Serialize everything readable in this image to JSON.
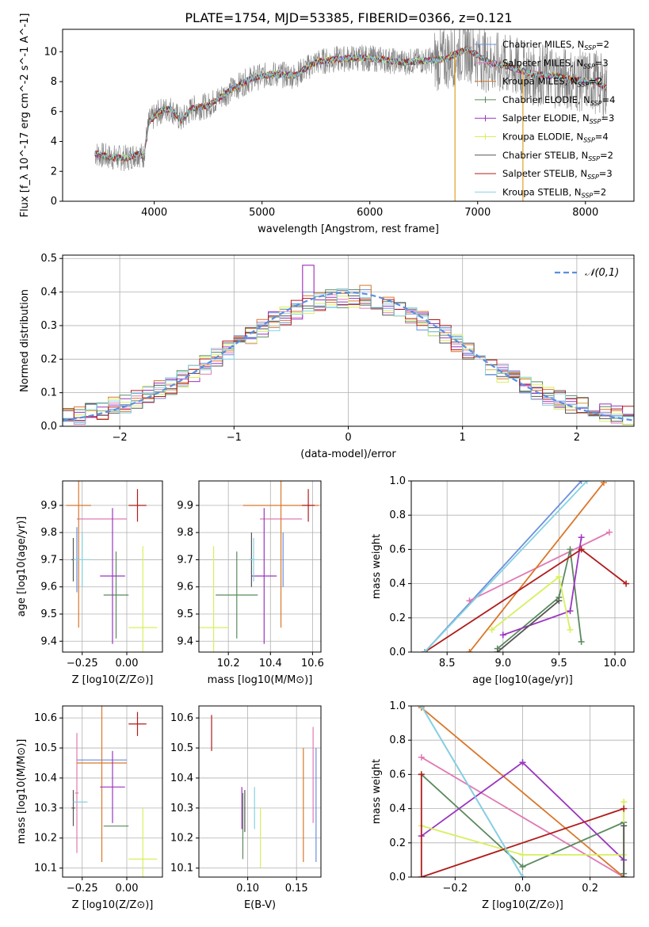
{
  "figure_title": "PLATE=1754, MJD=53385, FIBERID=0366, z=0.121",
  "series_legend": [
    {
      "label": "Chabrier MILES, N_SSP=2",
      "color": "#6d8fe0"
    },
    {
      "label": "Salpeter MILES, N_SSP=3",
      "color": "#e07ab5"
    },
    {
      "label": "Kroupa MILES, N_SSP=2",
      "color": "#d9772b"
    },
    {
      "label": "Chabrier ELODIE, N_SSP=4",
      "color": "#5b8a5e"
    },
    {
      "label": "Salpeter ELODIE, N_SSP=3",
      "color": "#9b35c0"
    },
    {
      "label": "Kroupa ELODIE, N_SSP=4",
      "color": "#d7ef5e"
    },
    {
      "label": "Chabrier STELIB, N_SSP=2",
      "color": "#555555"
    },
    {
      "label": "Salpeter STELIB, N_SSP=3",
      "color": "#b01c1c"
    },
    {
      "label": "Kroupa STELIB, N_SSP=2",
      "color": "#85d3e0"
    }
  ],
  "chart_data": [
    {
      "id": "spectrum",
      "type": "line",
      "title": "PLATE=1754, MJD=53385, FIBERID=0366, z=0.121",
      "xlabel": "wavelength [Angstrom, rest frame]",
      "ylabel": "Flux [f_λ 10^-17 erg cm^-2 s^-1 A^-1]",
      "xlim": [
        3150,
        8450
      ],
      "ylim": [
        0,
        11.5
      ],
      "xticks": [
        4000,
        5000,
        6000,
        7000,
        8000
      ],
      "yticks": [
        0,
        2,
        4,
        6,
        8,
        10
      ],
      "legend_position": "right",
      "continuum": {
        "x": [
          3450,
          3550,
          3650,
          3750,
          3850,
          3900,
          3950,
          4050,
          4150,
          4250,
          4350,
          4500,
          4700,
          4900,
          5100,
          5300,
          5500,
          5700,
          5900,
          6100,
          6300,
          6500,
          6700,
          6900,
          7100,
          7300,
          7500,
          7700,
          7900,
          8100,
          8200
        ],
        "y": [
          3.2,
          3.0,
          2.9,
          2.9,
          3.2,
          3.0,
          5.3,
          6.0,
          6.2,
          5.4,
          6.2,
          6.4,
          7.4,
          8.2,
          8.5,
          8.4,
          9.3,
          9.5,
          9.6,
          9.5,
          9.3,
          9.4,
          9.5,
          10.2,
          9.3,
          9.0,
          8.5,
          8.4,
          8.1,
          8.0,
          7.5
        ]
      },
      "observed_noise_amplitude": 0.9,
      "sky_line_dips_x": [
        6790,
        7420
      ],
      "annotation": ""
    },
    {
      "id": "residuals",
      "type": "step",
      "xlabel": "(data-model)/error",
      "ylabel": "Normed distribution",
      "xlim": [
        -2.5,
        2.5
      ],
      "ylim": [
        0,
        0.51
      ],
      "xticks": [
        -2,
        -1,
        0,
        1,
        2
      ],
      "yticks": [
        0.0,
        0.1,
        0.2,
        0.3,
        0.4,
        0.5
      ],
      "legend_position": "top-right",
      "legend_label": "N(0,1)",
      "bin_width": 0.1,
      "series_peak_bins": [
        {
          "name": "Chabrier MILES",
          "peak_x": -0.35,
          "peak_y": 0.4
        },
        {
          "name": "Salpeter MILES",
          "peak_x": -0.35,
          "peak_y": 0.48
        },
        {
          "name": "Kroupa MILES",
          "peak_x": 0.15,
          "peak_y": 0.42
        },
        {
          "name": "Salpeter ELODIE",
          "peak_x": -0.35,
          "peak_y": 0.48
        },
        {
          "name": "Kroupa STELIB",
          "peak_x": -0.05,
          "peak_y": 0.41
        }
      ]
    },
    {
      "id": "age_vs_Z",
      "type": "errorbar",
      "xlabel": "Z [log10(Z/Z⊙)]",
      "ylabel": "age [log10(age/yr)]",
      "xlim": [
        -0.36,
        0.2
      ],
      "ylim": [
        9.36,
        9.99
      ],
      "xticks": [
        -0.25,
        0.0
      ],
      "yticks": [
        9.4,
        9.5,
        9.6,
        9.7,
        9.8,
        9.9
      ],
      "points": [
        {
          "series": "Chabrier MILES",
          "x": -0.28,
          "y": 9.7,
          "xerr": 0.02,
          "yerr": 0.12
        },
        {
          "series": "Salpeter MILES",
          "x": -0.14,
          "y": 9.85,
          "xerr": 0.14,
          "yerr": 0.0
        },
        {
          "series": "Kroupa MILES",
          "x": -0.27,
          "y": 9.9,
          "xerr": 0.07,
          "yerr": 0.45
        },
        {
          "series": "Chabrier ELODIE",
          "x": -0.06,
          "y": 9.57,
          "xerr": 0.07,
          "yerr": 0.16
        },
        {
          "series": "Salpeter ELODIE",
          "x": -0.08,
          "y": 9.64,
          "xerr": 0.07,
          "yerr": 0.25
        },
        {
          "series": "Kroupa ELODIE",
          "x": 0.09,
          "y": 9.45,
          "xerr": 0.08,
          "yerr": 0.3
        },
        {
          "series": "Chabrier STELIB",
          "x": -0.3,
          "y": 9.7,
          "xerr": 0.01,
          "yerr": 0.08
        },
        {
          "series": "Salpeter STELIB",
          "x": 0.06,
          "y": 9.9,
          "xerr": 0.05,
          "yerr": 0.06
        },
        {
          "series": "Kroupa STELIB",
          "x": -0.25,
          "y": 9.7,
          "xerr": 0.05,
          "yerr": 0.1
        }
      ]
    },
    {
      "id": "age_vs_mass",
      "type": "errorbar",
      "xlabel": "mass [log10(M/M⊙)]",
      "ylabel": "",
      "xlim": [
        10.06,
        10.64
      ],
      "ylim": [
        9.36,
        9.99
      ],
      "xticks": [
        10.2,
        10.4,
        10.6
      ],
      "yticks": [
        9.4,
        9.5,
        9.6,
        9.7,
        9.8,
        9.9
      ],
      "points": [
        {
          "series": "Chabrier MILES",
          "x": 10.46,
          "y": 9.7,
          "xerr": 0.0,
          "yerr": 0.1
        },
        {
          "series": "Salpeter MILES",
          "x": 10.45,
          "y": 9.85,
          "xerr": 0.1,
          "yerr": 0.0
        },
        {
          "series": "Kroupa MILES",
          "x": 10.45,
          "y": 9.9,
          "xerr": 0.18,
          "yerr": 0.45
        },
        {
          "series": "Chabrier ELODIE",
          "x": 10.24,
          "y": 9.57,
          "xerr": 0.1,
          "yerr": 0.16
        },
        {
          "series": "Salpeter ELODIE",
          "x": 10.37,
          "y": 9.64,
          "xerr": 0.06,
          "yerr": 0.25
        },
        {
          "series": "Kroupa ELODIE",
          "x": 10.13,
          "y": 9.45,
          "xerr": 0.07,
          "yerr": 0.3
        },
        {
          "series": "Chabrier STELIB",
          "x": 10.31,
          "y": 9.7,
          "xerr": 0.01,
          "yerr": 0.1
        },
        {
          "series": "Salpeter STELIB",
          "x": 10.58,
          "y": 9.9,
          "xerr": 0.03,
          "yerr": 0.06
        },
        {
          "series": "Kroupa STELIB",
          "x": 10.32,
          "y": 9.7,
          "xerr": 0.02,
          "yerr": 0.08
        }
      ]
    },
    {
      "id": "weight_vs_age",
      "type": "line",
      "xlabel": "age [log10(age/yr)]",
      "ylabel": "mass weight",
      "xlim": [
        8.18,
        10.17
      ],
      "ylim": [
        0,
        1.0
      ],
      "xticks": [
        8.5,
        9.0,
        9.5,
        10.0
      ],
      "yticks": [
        0.0,
        0.2,
        0.4,
        0.6,
        0.8,
        1.0
      ],
      "series": [
        {
          "name": "Chabrier MILES",
          "x": [
            8.3,
            9.7
          ],
          "y": [
            0.0,
            1.0
          ]
        },
        {
          "name": "Salpeter MILES",
          "x": [
            8.7,
            9.95
          ],
          "y": [
            0.3,
            0.7
          ]
        },
        {
          "name": "Kroupa MILES",
          "x": [
            8.7,
            9.9
          ],
          "y": [
            0.0,
            0.99
          ]
        },
        {
          "name": "Chabrier ELODIE",
          "x": [
            8.95,
            9.5,
            9.6,
            9.7
          ],
          "y": [
            0.02,
            0.32,
            0.6,
            0.06
          ]
        },
        {
          "name": "Salpeter ELODIE",
          "x": [
            9.0,
            9.6,
            9.7
          ],
          "y": [
            0.1,
            0.24,
            0.67
          ]
        },
        {
          "name": "Kroupa ELODIE",
          "x": [
            8.9,
            9.5,
            9.6
          ],
          "y": [
            0.13,
            0.44,
            0.13
          ]
        },
        {
          "name": "Chabrier STELIB",
          "x": [
            8.95,
            9.5
          ],
          "y": [
            0.0,
            0.3
          ]
        },
        {
          "name": "Salpeter STELIB",
          "x": [
            8.3,
            9.7,
            10.1
          ],
          "y": [
            0.0,
            0.6,
            0.4
          ]
        },
        {
          "name": "Kroupa STELIB",
          "x": [
            8.3,
            9.75
          ],
          "y": [
            0.0,
            1.0
          ]
        }
      ]
    },
    {
      "id": "mass_vs_Z",
      "type": "errorbar",
      "xlabel": "Z [log10(Z/Z⊙)]",
      "ylabel": "mass [log10(M/M⊙)]",
      "xlim": [
        -0.36,
        0.2
      ],
      "ylim": [
        10.07,
        10.64
      ],
      "xticks": [
        -0.25,
        0.0
      ],
      "yticks": [
        10.1,
        10.2,
        10.3,
        10.4,
        10.5,
        10.6
      ],
      "points": [
        {
          "series": "Chabrier MILES",
          "x": -0.14,
          "y": 10.46,
          "xerr": 0.14,
          "yerr": 0.0
        },
        {
          "series": "Salpeter MILES",
          "x": -0.28,
          "y": 10.35,
          "xerr": 0.01,
          "yerr": 0.2
        },
        {
          "series": "Kroupa MILES",
          "x": -0.14,
          "y": 10.45,
          "xerr": 0.14,
          "yerr": 0.33
        },
        {
          "series": "Chabrier ELODIE",
          "x": -0.06,
          "y": 10.24,
          "xerr": 0.07,
          "yerr": 0.0
        },
        {
          "series": "Salpeter ELODIE",
          "x": -0.08,
          "y": 10.37,
          "xerr": 0.07,
          "yerr": 0.12
        },
        {
          "series": "Kroupa ELODIE",
          "x": 0.09,
          "y": 10.13,
          "xerr": 0.08,
          "yerr": 0.17
        },
        {
          "series": "Chabrier STELIB",
          "x": -0.3,
          "y": 10.3,
          "xerr": 0.01,
          "yerr": 0.06
        },
        {
          "series": "Salpeter STELIB",
          "x": 0.06,
          "y": 10.58,
          "xerr": 0.05,
          "yerr": 0.04
        },
        {
          "series": "Kroupa STELIB",
          "x": -0.26,
          "y": 10.32,
          "xerr": 0.04,
          "yerr": 0.0
        }
      ]
    },
    {
      "id": "mass_vs_EBV",
      "type": "errorbar",
      "xlabel": "E(B-V)",
      "ylabel": "",
      "xlim": [
        0.05,
        0.175
      ],
      "ylim": [
        10.07,
        10.64
      ],
      "xticks": [
        0.1,
        0.15
      ],
      "yticks": [
        10.1,
        10.2,
        10.3,
        10.4,
        10.5,
        10.6
      ],
      "points": [
        {
          "series": "Chabrier MILES",
          "x": 0.17,
          "y": 10.31,
          "xerr": 0.0,
          "yerr": 0.19
        },
        {
          "series": "Salpeter MILES",
          "x": 0.167,
          "y": 10.41,
          "xerr": 0.0,
          "yerr": 0.16
        },
        {
          "series": "Kroupa MILES",
          "x": 0.157,
          "y": 10.31,
          "xerr": 0.0,
          "yerr": 0.19
        },
        {
          "series": "Chabrier ELODIE",
          "x": 0.095,
          "y": 10.24,
          "xerr": 0.0,
          "yerr": 0.11
        },
        {
          "series": "Salpeter ELODIE",
          "x": 0.094,
          "y": 10.3,
          "xerr": 0.0,
          "yerr": 0.07
        },
        {
          "series": "Kroupa ELODIE",
          "x": 0.113,
          "y": 10.2,
          "xerr": 0.0,
          "yerr": 0.1
        },
        {
          "series": "Chabrier STELIB",
          "x": 0.097,
          "y": 10.29,
          "xerr": 0.0,
          "yerr": 0.07
        },
        {
          "series": "Salpeter STELIB",
          "x": 0.063,
          "y": 10.55,
          "xerr": 0.0,
          "yerr": 0.06
        },
        {
          "series": "Kroupa STELIB",
          "x": 0.107,
          "y": 10.3,
          "xerr": 0.0,
          "yerr": 0.07
        }
      ]
    },
    {
      "id": "weight_vs_Z",
      "type": "line",
      "xlabel": "Z [log10(Z/Z⊙)]",
      "ylabel": "mass weight",
      "xlim": [
        -0.33,
        0.33
      ],
      "ylim": [
        0,
        1.0
      ],
      "xticks": [
        -0.2,
        0.0,
        0.2
      ],
      "yticks": [
        0.0,
        0.2,
        0.4,
        0.6,
        0.8,
        1.0
      ],
      "series": [
        {
          "name": "Chabrier MILES",
          "x": [
            -0.3,
            0.0
          ],
          "y": [
            1.0,
            0.0
          ]
        },
        {
          "name": "Salpeter MILES",
          "x": [
            -0.3,
            0.3
          ],
          "y": [
            0.7,
            0.0
          ]
        },
        {
          "name": "Kroupa MILES",
          "x": [
            -0.3,
            0.3
          ],
          "y": [
            0.99,
            0.0
          ]
        },
        {
          "name": "Chabrier ELODIE",
          "x": [
            -0.3,
            0.0,
            0.3,
            0.3
          ],
          "y": [
            0.6,
            0.06,
            0.32,
            0.02
          ]
        },
        {
          "name": "Salpeter ELODIE",
          "x": [
            -0.3,
            0.0,
            0.3
          ],
          "y": [
            0.24,
            0.67,
            0.1
          ]
        },
        {
          "name": "Kroupa ELODIE",
          "x": [
            -0.3,
            0.0,
            0.3,
            0.3
          ],
          "y": [
            0.3,
            0.13,
            0.13,
            0.44
          ]
        },
        {
          "name": "Chabrier STELIB",
          "x": [
            0.3,
            0.3
          ],
          "y": [
            0.0,
            0.3
          ]
        },
        {
          "name": "Salpeter STELIB",
          "x": [
            -0.3,
            -0.3,
            0.3
          ],
          "y": [
            0.6,
            0.0,
            0.4
          ]
        },
        {
          "name": "Kroupa STELIB",
          "x": [
            -0.3,
            0.0
          ],
          "y": [
            1.0,
            0.0
          ]
        }
      ]
    }
  ]
}
